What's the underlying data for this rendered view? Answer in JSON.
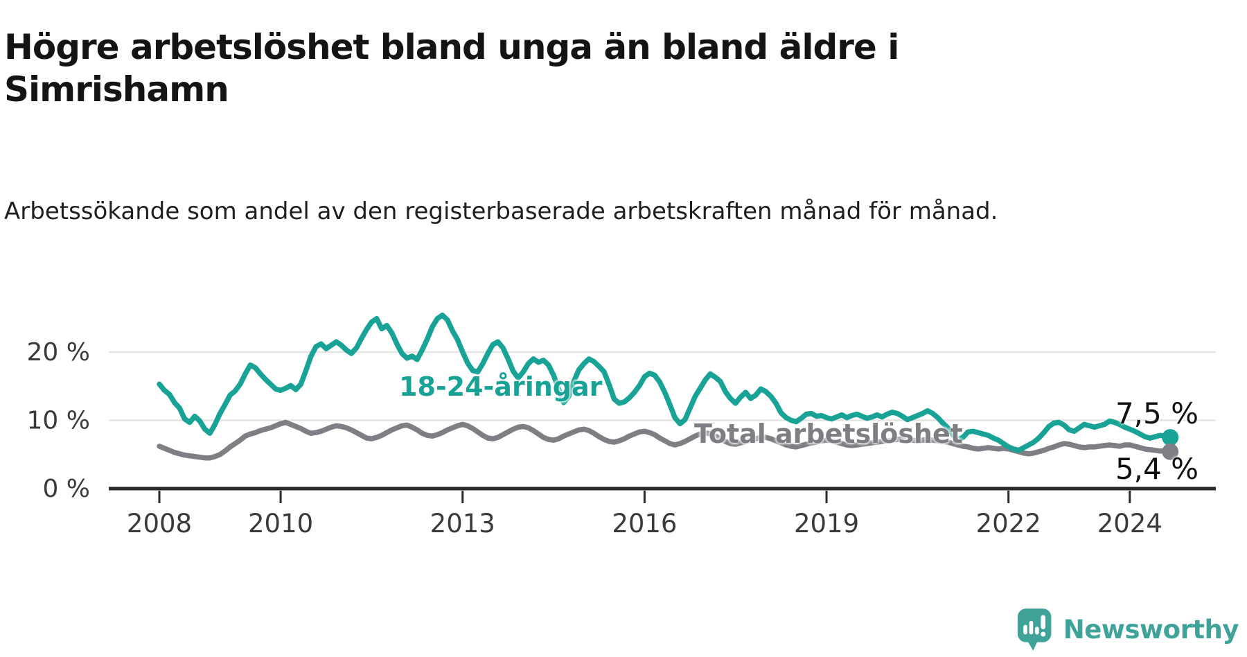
{
  "header": {
    "title": "Högre arbetslöshet bland unga än bland äldre i Simrishamn",
    "subtitle": "Arbetssökande som andel av den registerbaserade arbetskraften månad för månad."
  },
  "annotations": {
    "young_series_label": "18-24-åringar",
    "total_series_label": "Total arbetslöshet",
    "young_end_value": "7,5 %",
    "total_end_value": "5,4 %"
  },
  "footer": {
    "brand": "Newsworthy",
    "brand_color": "#3fa39a"
  },
  "chart_data": {
    "type": "line",
    "title": "Högre arbetslöshet bland unga än bland äldre i Simrishamn",
    "subtitle": "Arbetssökande som andel av den registerbaserade arbetskraften månad för månad.",
    "x_unit": "month",
    "x_start_year": 2008,
    "x_end_year": 2024.667,
    "x_tick_years": [
      2008,
      2010,
      2013,
      2016,
      2019,
      2022,
      2024
    ],
    "y_ticks": [
      {
        "value": 0,
        "label": "0 %"
      },
      {
        "value": 10,
        "label": "10 %"
      },
      {
        "value": 20,
        "label": "20 %"
      }
    ],
    "ylim": [
      0,
      27
    ],
    "grid": "horizontal",
    "legend_position": "inline-labels",
    "colors": {
      "young": "#18a396",
      "total": "#7e7e84",
      "grid": "#e4e4e4",
      "axis": "#2a2a2a",
      "tick_text": "#3a3a3a"
    },
    "series": [
      {
        "name": "18-24-åringar",
        "color": "#18a396",
        "end_label": "7,5 %",
        "end_value": 7.5,
        "values": [
          15.3,
          14.4,
          13.8,
          12.6,
          11.8,
          10.2,
          9.7,
          10.6,
          9.9,
          8.7,
          8.1,
          9.4,
          11.0,
          12.3,
          13.7,
          14.3,
          15.3,
          16.8,
          18.1,
          17.7,
          16.8,
          16.0,
          15.3,
          14.6,
          14.4,
          14.7,
          15.1,
          14.5,
          15.3,
          17.3,
          19.4,
          20.8,
          21.2,
          20.5,
          21.0,
          21.5,
          21.0,
          20.3,
          19.8,
          20.6,
          22.0,
          23.3,
          24.4,
          24.9,
          23.4,
          23.9,
          22.8,
          21.2,
          19.8,
          19.1,
          19.4,
          18.9,
          20.3,
          21.9,
          23.7,
          24.9,
          25.4,
          24.7,
          23.1,
          21.8,
          20.0,
          18.4,
          17.3,
          17.1,
          18.3,
          19.8,
          21.1,
          21.5,
          20.6,
          19.0,
          17.2,
          16.2,
          17.1,
          18.3,
          19.0,
          18.5,
          18.8,
          18.1,
          16.6,
          14.6,
          12.6,
          13.5,
          15.7,
          17.4,
          18.3,
          19.0,
          18.6,
          17.9,
          17.1,
          15.2,
          13.1,
          12.5,
          12.7,
          13.3,
          14.1,
          15.1,
          16.4,
          16.9,
          16.6,
          15.6,
          14.1,
          12.3,
          10.4,
          9.5,
          10.1,
          11.8,
          13.5,
          14.7,
          15.9,
          16.8,
          16.3,
          15.7,
          14.2,
          13.2,
          12.5,
          13.4,
          14.1,
          13.2,
          13.7,
          14.6,
          14.2,
          13.5,
          12.5,
          11.1,
          10.4,
          10.0,
          9.8,
          10.3,
          10.9,
          11.0,
          10.6,
          10.7,
          10.4,
          10.2,
          10.5,
          10.8,
          10.4,
          10.7,
          10.9,
          10.6,
          10.3,
          10.5,
          10.8,
          10.5,
          10.9,
          11.2,
          11.0,
          10.6,
          10.1,
          10.4,
          10.7,
          11.0,
          11.4,
          11.0,
          10.4,
          9.6,
          8.9,
          7.9,
          7.2,
          7.5,
          8.3,
          8.4,
          8.2,
          8.0,
          7.8,
          7.4,
          7.1,
          6.6,
          6.1,
          5.8,
          5.6,
          6.0,
          6.4,
          6.8,
          7.4,
          8.2,
          9.1,
          9.6,
          9.7,
          9.3,
          8.6,
          8.4,
          8.9,
          9.4,
          9.2,
          9.0,
          9.2,
          9.4,
          9.9,
          9.7,
          9.4,
          9.0,
          8.7,
          8.4,
          8.0,
          7.6,
          7.4,
          7.6,
          7.8,
          7.7,
          7.5
        ]
      },
      {
        "name": "Total arbetslöshet",
        "color": "#7e7e84",
        "end_label": "5,4 %",
        "end_value": 5.4,
        "values": [
          6.2,
          5.9,
          5.6,
          5.3,
          5.1,
          4.9,
          4.8,
          4.7,
          4.6,
          4.5,
          4.5,
          4.7,
          5.0,
          5.5,
          6.1,
          6.6,
          7.1,
          7.7,
          8.0,
          8.2,
          8.5,
          8.7,
          8.9,
          9.2,
          9.5,
          9.7,
          9.4,
          9.1,
          8.8,
          8.4,
          8.1,
          8.2,
          8.4,
          8.7,
          9.0,
          9.2,
          9.1,
          8.9,
          8.6,
          8.2,
          7.8,
          7.4,
          7.3,
          7.5,
          7.8,
          8.2,
          8.6,
          8.9,
          9.2,
          9.3,
          9.0,
          8.6,
          8.1,
          7.8,
          7.7,
          7.9,
          8.2,
          8.6,
          8.9,
          9.2,
          9.4,
          9.2,
          8.8,
          8.3,
          7.8,
          7.4,
          7.3,
          7.5,
          7.9,
          8.3,
          8.7,
          9.0,
          9.1,
          8.9,
          8.5,
          8.0,
          7.5,
          7.2,
          7.1,
          7.3,
          7.7,
          8.0,
          8.3,
          8.6,
          8.7,
          8.5,
          8.1,
          7.6,
          7.2,
          6.9,
          6.8,
          7.0,
          7.3,
          7.7,
          8.0,
          8.3,
          8.4,
          8.2,
          7.9,
          7.4,
          7.0,
          6.6,
          6.4,
          6.6,
          6.9,
          7.3,
          7.7,
          8.0,
          8.2,
          8.0,
          7.7,
          7.3,
          6.9,
          6.6,
          6.5,
          6.7,
          6.9,
          7.1,
          7.3,
          7.5,
          7.5,
          7.3,
          7.0,
          6.7,
          6.4,
          6.2,
          6.1,
          6.3,
          6.5,
          6.7,
          6.8,
          7.0,
          7.1,
          7.0,
          6.8,
          6.6,
          6.4,
          6.3,
          6.4,
          6.5,
          6.6,
          6.7,
          6.8,
          6.9,
          7.0,
          7.1,
          7.2,
          7.3,
          7.2,
          7.1,
          7.0,
          7.1,
          7.2,
          7.1,
          7.0,
          6.9,
          6.8,
          6.6,
          6.4,
          6.2,
          6.1,
          5.9,
          5.8,
          5.9,
          6.0,
          5.9,
          5.8,
          5.9,
          5.8,
          5.6,
          5.4,
          5.2,
          5.1,
          5.2,
          5.4,
          5.6,
          5.9,
          6.1,
          6.4,
          6.6,
          6.5,
          6.3,
          6.1,
          6.0,
          6.1,
          6.1,
          6.2,
          6.3,
          6.4,
          6.3,
          6.2,
          6.4,
          6.4,
          6.2,
          6.0,
          5.8,
          5.7,
          5.6,
          5.5,
          5.5,
          5.4
        ]
      }
    ]
  }
}
